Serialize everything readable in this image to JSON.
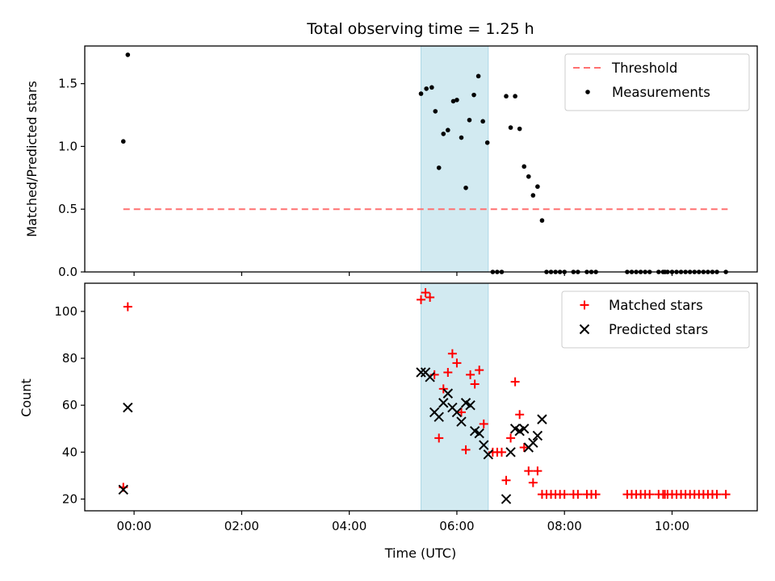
{
  "chart_data": [
    {
      "type": "scatter",
      "title": "Total observing time = 1.25 h",
      "ylabel": "Matched/Predicted stars",
      "xlabel": "",
      "xlim": [
        "23:05",
        "11:35"
      ],
      "ylim": [
        0,
        1.8
      ],
      "grid": false,
      "legend_position": "top-right",
      "xticks": [
        "00:00",
        "02:00",
        "04:00",
        "06:00",
        "08:00",
        "10:00"
      ],
      "yticks": [
        "0.0",
        "0.5",
        "1.0",
        "1.5"
      ],
      "shaded_span": {
        "start": "05:20",
        "end": "06:35",
        "color": "#add8e6"
      },
      "threshold": {
        "name": "Threshold",
        "value": 0.5,
        "x_start": "23:48",
        "x_end": "11:02",
        "color": "#ff7070",
        "style": "dashed"
      },
      "series": [
        {
          "name": "Measurements",
          "marker": "dot",
          "color": "#000000",
          "points": [
            [
              "23:48",
              1.04
            ],
            [
              "23:53",
              1.73
            ],
            [
              "05:20",
              1.42
            ],
            [
              "05:26",
              1.46
            ],
            [
              "05:32",
              1.47
            ],
            [
              "05:36",
              1.28
            ],
            [
              "05:40",
              0.83
            ],
            [
              "05:45",
              1.1
            ],
            [
              "05:50",
              1.13
            ],
            [
              "05:56",
              1.36
            ],
            [
              "06:00",
              1.37
            ],
            [
              "06:05",
              1.07
            ],
            [
              "06:10",
              0.67
            ],
            [
              "06:14",
              1.21
            ],
            [
              "06:19",
              1.41
            ],
            [
              "06:24",
              1.56
            ],
            [
              "06:29",
              1.2
            ],
            [
              "06:34",
              1.03
            ],
            [
              "06:40",
              0.0
            ],
            [
              "06:45",
              0.0
            ],
            [
              "06:50",
              0.0
            ],
            [
              "06:55",
              1.4
            ],
            [
              "07:00",
              1.15
            ],
            [
              "07:05",
              1.4
            ],
            [
              "07:10",
              1.14
            ],
            [
              "07:15",
              0.84
            ],
            [
              "07:20",
              0.76
            ],
            [
              "07:25",
              0.61
            ],
            [
              "07:30",
              0.68
            ],
            [
              "07:35",
              0.41
            ],
            [
              "07:40",
              0.0
            ],
            [
              "07:45",
              0.0
            ],
            [
              "07:50",
              0.0
            ],
            [
              "07:55",
              0.0
            ],
            [
              "08:00",
              0.0
            ],
            [
              "08:10",
              0.0
            ],
            [
              "08:15",
              0.0
            ],
            [
              "08:25",
              0.0
            ],
            [
              "08:30",
              0.0
            ],
            [
              "08:35",
              0.0
            ],
            [
              "09:10",
              0.0
            ],
            [
              "09:15",
              0.0
            ],
            [
              "09:20",
              0.0
            ],
            [
              "09:25",
              0.0
            ],
            [
              "09:30",
              0.0
            ],
            [
              "09:35",
              0.0
            ],
            [
              "09:45",
              0.0
            ],
            [
              "09:50",
              0.0
            ],
            [
              "09:52",
              0.0
            ],
            [
              "09:55",
              0.0
            ],
            [
              "10:00",
              0.0
            ],
            [
              "10:05",
              0.0
            ],
            [
              "10:10",
              0.0
            ],
            [
              "10:15",
              0.0
            ],
            [
              "10:20",
              0.0
            ],
            [
              "10:25",
              0.0
            ],
            [
              "10:30",
              0.0
            ],
            [
              "10:35",
              0.0
            ],
            [
              "10:40",
              0.0
            ],
            [
              "10:45",
              0.0
            ],
            [
              "10:50",
              0.0
            ],
            [
              "11:00",
              0.0
            ]
          ]
        }
      ]
    },
    {
      "type": "scatter",
      "title": "",
      "xlabel": "Time (UTC)",
      "ylabel": "Count",
      "xlim": [
        "23:05",
        "11:35"
      ],
      "ylim": [
        15,
        112
      ],
      "grid": false,
      "legend_position": "top-right",
      "xticks": [
        "00:00",
        "02:00",
        "04:00",
        "06:00",
        "08:00",
        "10:00"
      ],
      "yticks": [
        "20",
        "40",
        "60",
        "80",
        "100"
      ],
      "shaded_span": {
        "start": "05:20",
        "end": "06:35",
        "color": "#add8e6"
      },
      "series": [
        {
          "name": "Matched stars",
          "marker": "plus",
          "color": "#ff0000",
          "points": [
            [
              "23:48",
              25
            ],
            [
              "23:53",
              102
            ],
            [
              "05:20",
              105
            ],
            [
              "05:25",
              108
            ],
            [
              "05:30",
              106
            ],
            [
              "05:35",
              73
            ],
            [
              "05:40",
              46
            ],
            [
              "05:45",
              67
            ],
            [
              "05:50",
              74
            ],
            [
              "05:55",
              82
            ],
            [
              "06:00",
              78
            ],
            [
              "06:05",
              57
            ],
            [
              "06:10",
              41
            ],
            [
              "06:15",
              73
            ],
            [
              "06:20",
              69
            ],
            [
              "06:25",
              75
            ],
            [
              "06:30",
              52
            ],
            [
              "06:40",
              40
            ],
            [
              "06:45",
              40
            ],
            [
              "06:50",
              40
            ],
            [
              "06:55",
              28
            ],
            [
              "07:00",
              46
            ],
            [
              "07:05",
              70
            ],
            [
              "07:10",
              56
            ],
            [
              "07:15",
              42
            ],
            [
              "07:20",
              32
            ],
            [
              "07:25",
              27
            ],
            [
              "07:30",
              32
            ],
            [
              "07:35",
              22
            ],
            [
              "07:40",
              22
            ],
            [
              "07:45",
              22
            ],
            [
              "07:50",
              22
            ],
            [
              "07:55",
              22
            ],
            [
              "08:00",
              22
            ],
            [
              "08:10",
              22
            ],
            [
              "08:15",
              22
            ],
            [
              "08:25",
              22
            ],
            [
              "08:30",
              22
            ],
            [
              "08:35",
              22
            ],
            [
              "09:10",
              22
            ],
            [
              "09:15",
              22
            ],
            [
              "09:20",
              22
            ],
            [
              "09:25",
              22
            ],
            [
              "09:30",
              22
            ],
            [
              "09:35",
              22
            ],
            [
              "09:45",
              22
            ],
            [
              "09:50",
              22
            ],
            [
              "09:52",
              22
            ],
            [
              "09:55",
              22
            ],
            [
              "10:00",
              22
            ],
            [
              "10:05",
              22
            ],
            [
              "10:10",
              22
            ],
            [
              "10:15",
              22
            ],
            [
              "10:20",
              22
            ],
            [
              "10:25",
              22
            ],
            [
              "10:30",
              22
            ],
            [
              "10:35",
              22
            ],
            [
              "10:40",
              22
            ],
            [
              "10:45",
              22
            ],
            [
              "10:50",
              22
            ],
            [
              "11:00",
              22
            ]
          ]
        },
        {
          "name": "Predicted stars",
          "marker": "x",
          "color": "#000000",
          "points": [
            [
              "23:48",
              24
            ],
            [
              "23:53",
              59
            ],
            [
              "05:20",
              74
            ],
            [
              "05:25",
              74
            ],
            [
              "05:30",
              72
            ],
            [
              "05:35",
              57
            ],
            [
              "05:40",
              55
            ],
            [
              "05:45",
              61
            ],
            [
              "05:50",
              65
            ],
            [
              "05:55",
              59
            ],
            [
              "06:00",
              57
            ],
            [
              "06:05",
              53
            ],
            [
              "06:10",
              61
            ],
            [
              "06:15",
              60
            ],
            [
              "06:20",
              49
            ],
            [
              "06:25",
              48
            ],
            [
              "06:30",
              43
            ],
            [
              "06:35",
              39
            ],
            [
              "06:55",
              20
            ],
            [
              "07:00",
              40
            ],
            [
              "07:05",
              50
            ],
            [
              "07:10",
              49
            ],
            [
              "07:15",
              50
            ],
            [
              "07:20",
              42
            ],
            [
              "07:25",
              44
            ],
            [
              "07:30",
              47
            ],
            [
              "07:35",
              54
            ]
          ]
        }
      ]
    }
  ]
}
